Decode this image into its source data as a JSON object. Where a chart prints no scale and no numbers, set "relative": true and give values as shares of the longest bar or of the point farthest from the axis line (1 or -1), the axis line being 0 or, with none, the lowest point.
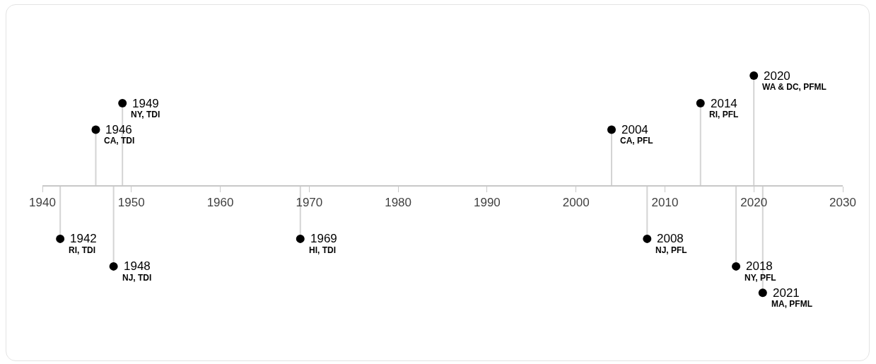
{
  "chart_data": {
    "type": "lollipop",
    "relative": true,
    "x": [
      1942,
      1946,
      1948,
      1949,
      1969,
      2004,
      2008,
      2014,
      2018,
      2020,
      2021
    ],
    "values": [
      -0.48,
      0.51,
      -0.73,
      0.75,
      -0.48,
      0.51,
      -0.48,
      0.75,
      -0.73,
      1,
      -0.97
    ],
    "color": "#000000",
    "marker": "circle",
    "grid": false,
    "xlim": [
      1940,
      2030
    ],
    "xticks": [
      1940,
      1950,
      1960,
      1970,
      1980,
      1990,
      2000,
      2010,
      2020,
      2030
    ],
    "annotations": [
      {
        "text": "1942\nRI, TDI",
        "x": 1942,
        "y": -0.48
      },
      {
        "text": "1946\nCA, TDI",
        "x": 1946,
        "y": 0.51
      },
      {
        "text": "1948\nNJ, TDI",
        "x": 1948,
        "y": -0.73
      },
      {
        "text": "1949\nNY, TDI",
        "x": 1949,
        "y": 0.75
      },
      {
        "text": "1969\nHI, TDI",
        "x": 1969,
        "y": -0.48
      },
      {
        "text": "2004\nCA, PFL",
        "x": 2004,
        "y": 0.51
      },
      {
        "text": "2008\nNJ, PFL",
        "x": 2008,
        "y": -0.48
      },
      {
        "text": "2014\nRI, PFL",
        "x": 2014,
        "y": 0.75
      },
      {
        "text": "2018\nNY, PFL",
        "x": 2018,
        "y": -0.73
      },
      {
        "text": "2020\nWA & DC, PFML",
        "x": 2020,
        "y": 1
      },
      {
        "text": "2021\nMA, PFML",
        "x": 2021,
        "y": -0.97
      }
    ]
  }
}
